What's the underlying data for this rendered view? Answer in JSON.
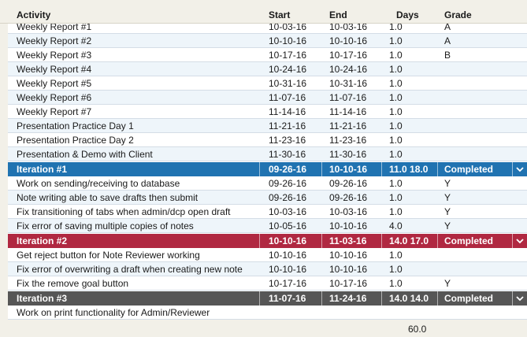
{
  "header": {
    "activity": "Activity",
    "start": "Start",
    "end": "End",
    "days": "Days",
    "grade": "Grade"
  },
  "rows": [
    {
      "kind": "task",
      "activity": "Weekly Report #1",
      "start": "10-03-16",
      "end": "10-03-16",
      "days": "1.0",
      "grade": "A"
    },
    {
      "kind": "task",
      "activity": "Weekly Report #2",
      "start": "10-10-16",
      "end": "10-10-16",
      "days": "1.0",
      "grade": "A"
    },
    {
      "kind": "task",
      "activity": "Weekly Report #3",
      "start": "10-17-16",
      "end": "10-17-16",
      "days": "1.0",
      "grade": "B"
    },
    {
      "kind": "task",
      "activity": "Weekly Report #4",
      "start": "10-24-16",
      "end": "10-24-16",
      "days": "1.0",
      "grade": ""
    },
    {
      "kind": "task",
      "activity": "Weekly Report #5",
      "start": "10-31-16",
      "end": "10-31-16",
      "days": "1.0",
      "grade": ""
    },
    {
      "kind": "task",
      "activity": "Weekly Report #6",
      "start": "11-07-16",
      "end": "11-07-16",
      "days": "1.0",
      "grade": ""
    },
    {
      "kind": "task",
      "activity": "Weekly Report #7",
      "start": "11-14-16",
      "end": "11-14-16",
      "days": "1.0",
      "grade": ""
    },
    {
      "kind": "task",
      "activity": "Presentation Practice Day 1",
      "start": "11-21-16",
      "end": "11-21-16",
      "days": "1.0",
      "grade": ""
    },
    {
      "kind": "task",
      "activity": "Presentation Practice Day 2",
      "start": "11-23-16",
      "end": "11-23-16",
      "days": "1.0",
      "grade": ""
    },
    {
      "kind": "task",
      "activity": "Presentation & Demo with Client",
      "start": "11-30-16",
      "end": "11-30-16",
      "days": "1.0",
      "grade": ""
    },
    {
      "kind": "iteration",
      "color": "#2073b1",
      "activity": "Iteration #1",
      "start": "09-26-16",
      "end": "10-10-16",
      "days": "11.0 18.0",
      "grade": "Completed"
    },
    {
      "kind": "task",
      "activity": "Work on sending/receiving to database",
      "start": "09-26-16",
      "end": "09-26-16",
      "days": "1.0",
      "grade": "Y"
    },
    {
      "kind": "task",
      "activity": "Note writing able to save drafts then submit",
      "start": "09-26-16",
      "end": "09-26-16",
      "days": "1.0",
      "grade": "Y"
    },
    {
      "kind": "task",
      "activity": "Fix transitioning of tabs when admin/dcp open draft",
      "start": "10-03-16",
      "end": "10-03-16",
      "days": "1.0",
      "grade": "Y"
    },
    {
      "kind": "task",
      "activity": "Fix error of saving multiple copies of notes",
      "start": "10-05-16",
      "end": "10-10-16",
      "days": "4.0",
      "grade": "Y"
    },
    {
      "kind": "iteration",
      "color": "#b02841",
      "activity": "Iteration #2",
      "start": "10-10-16",
      "end": "11-03-16",
      "days": "14.0 17.0",
      "grade": "Completed"
    },
    {
      "kind": "task",
      "activity": "Get reject button for Note Reviewer working",
      "start": "10-10-16",
      "end": "10-10-16",
      "days": "1.0",
      "grade": ""
    },
    {
      "kind": "task",
      "activity": "Fix error of overwriting a draft when creating new note",
      "start": "10-10-16",
      "end": "10-10-16",
      "days": "1.0",
      "grade": ""
    },
    {
      "kind": "task",
      "activity": "Fix the remove goal button",
      "start": "10-17-16",
      "end": "10-17-16",
      "days": "1.0",
      "grade": "Y"
    },
    {
      "kind": "iteration",
      "color": "#565656",
      "activity": "Iteration #3",
      "start": "11-07-16",
      "end": "11-24-16",
      "days": "14.0 14.0",
      "grade": "Completed"
    },
    {
      "kind": "task",
      "activity": "Work on print functionality for Admin/Reviewer",
      "start": "",
      "end": "",
      "days": "",
      "grade": ""
    }
  ],
  "footer": {
    "total_days": "60.0"
  },
  "icons": {
    "expand": "chevron-down-icon"
  }
}
